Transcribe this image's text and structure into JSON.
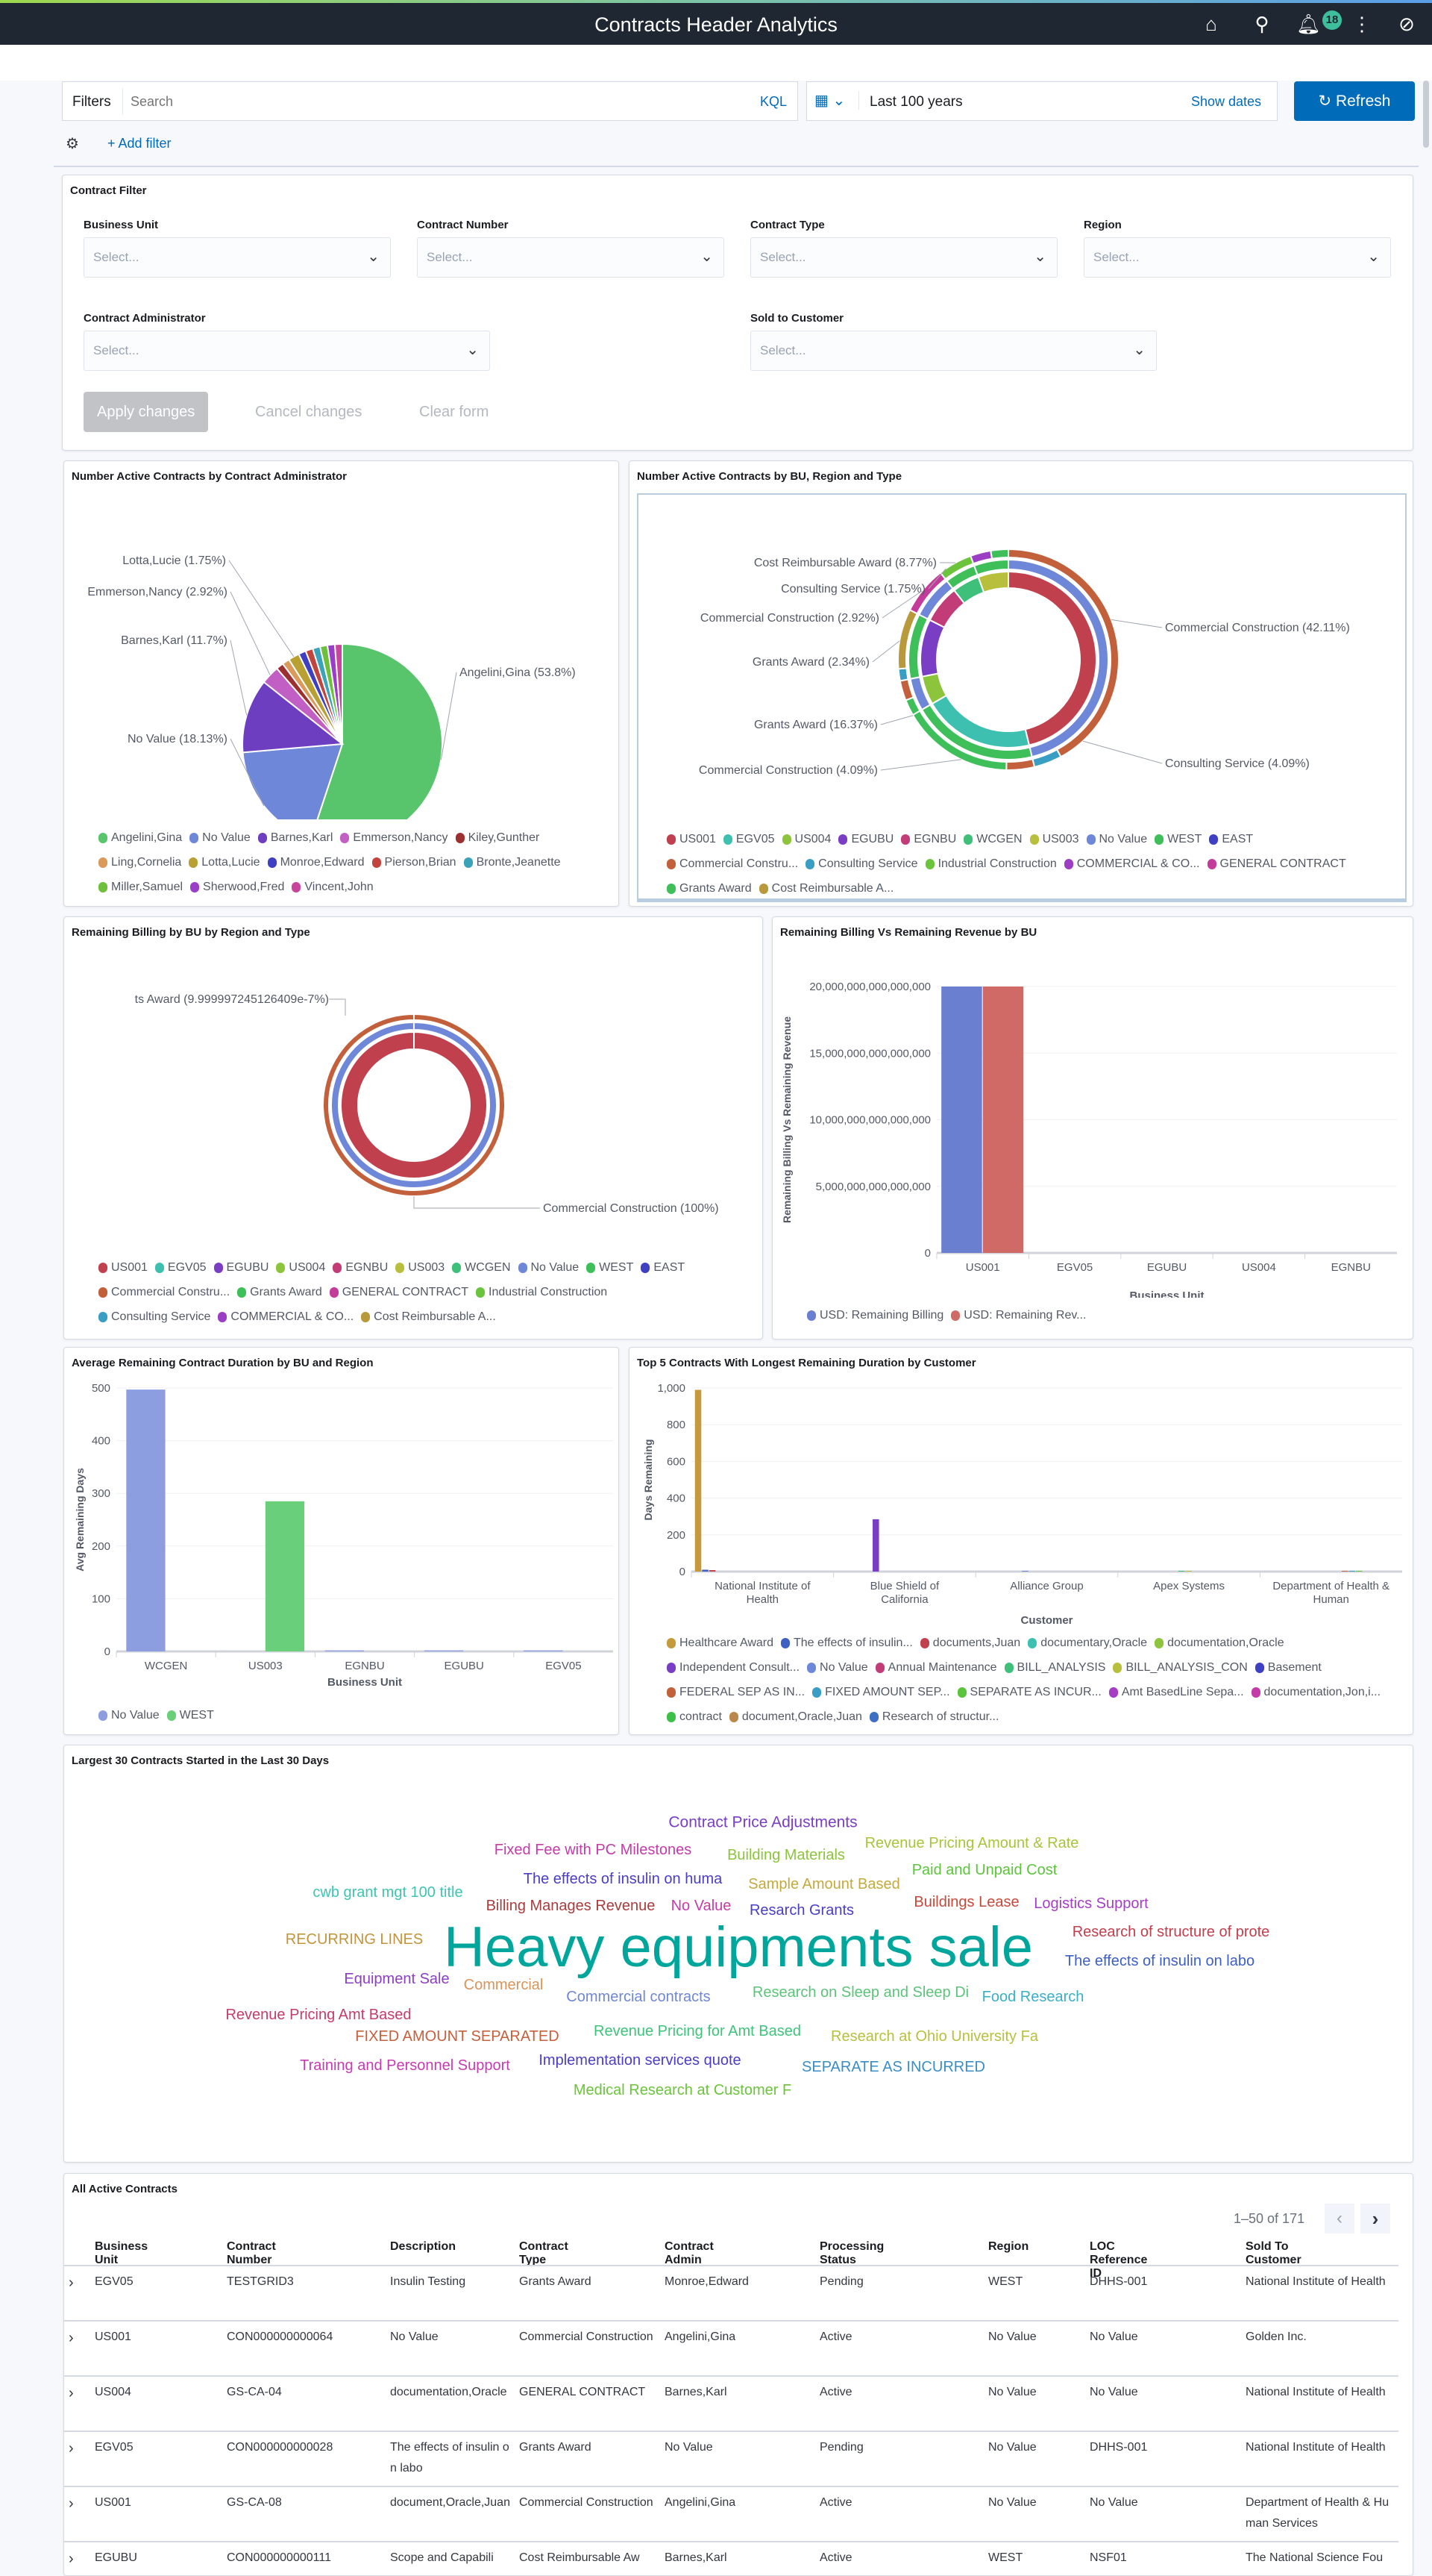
{
  "header": {
    "title": "Contracts Header Analytics",
    "notification_count": "18",
    "icons": [
      "home-icon",
      "search-icon",
      "bell-icon",
      "more-vertical-icon",
      "compass-icon"
    ]
  },
  "query_bar": {
    "filters_label": "Filters",
    "search_placeholder": "Search",
    "kql_label": "KQL",
    "date_range": "Last 100 years",
    "show_dates": "Show dates",
    "refresh_label": "Refresh",
    "add_filter": "+ Add filter"
  },
  "contract_filter": {
    "title": "Contract Filter",
    "fields": [
      {
        "label": "Business Unit",
        "placeholder": "Select..."
      },
      {
        "label": "Contract Number",
        "placeholder": "Select..."
      },
      {
        "label": "Contract Type",
        "placeholder": "Select..."
      },
      {
        "label": "Region",
        "placeholder": "Select..."
      },
      {
        "label": "Contract Administrator",
        "placeholder": "Select..."
      },
      {
        "label": "Sold to Customer",
        "placeholder": "Select..."
      }
    ],
    "apply": "Apply changes",
    "cancel": "Cancel changes",
    "clear": "Clear form"
  },
  "colors": {
    "accent": "#006bb8",
    "header_bg": "#1f2733",
    "wordcloud_main": "#00a69b"
  },
  "chart_data": [
    {
      "id": "admin-pie",
      "type": "pie",
      "title": "Number Active Contracts by Contract Administrator",
      "slices": [
        {
          "name": "Angelini,Gina",
          "value": 53.8,
          "color": "#58c46b",
          "label": "Angelini,Gina (53.8%)"
        },
        {
          "name": "No Value",
          "value": 18.13,
          "color": "#6f87d8",
          "label": "No Value (18.13%)"
        },
        {
          "name": "Barnes,Karl",
          "value": 11.7,
          "color": "#6d3fc0",
          "label": "Barnes,Karl (11.7%)"
        },
        {
          "name": "Emmerson,Nancy",
          "value": 2.92,
          "color": "#c25fc4",
          "label": "Emmerson,Nancy (2.92%)"
        },
        {
          "name": "Kiley,Gunther",
          "value": 1.17,
          "color": "#9c2f2f"
        },
        {
          "name": "Ling,Cornelia",
          "value": 1.17,
          "color": "#d99a5a"
        },
        {
          "name": "Lotta,Lucie",
          "value": 1.75,
          "color": "#b8a033",
          "label": "Lotta,Lucie (1.75%)"
        },
        {
          "name": "Monroe,Edward",
          "value": 1.17,
          "color": "#3e3fc2"
        },
        {
          "name": "Pierson,Brian",
          "value": 1.17,
          "color": "#c1443e"
        },
        {
          "name": "Bronte,Jeanette",
          "value": 1.17,
          "color": "#3aa3b8"
        },
        {
          "name": "Miller,Samuel",
          "value": 1.17,
          "color": "#6dbf3c"
        },
        {
          "name": "Sherwood,Fred",
          "value": 1.17,
          "color": "#9a3ec9"
        },
        {
          "name": "Vincent,John",
          "value": 1.17,
          "color": "#c9449c"
        }
      ],
      "legend": "bottom"
    },
    {
      "id": "bu-sunburst",
      "type": "pie",
      "title": "Number Active Contracts by BU, Region and Type",
      "legend_items": [
        [
          "US001",
          "#c1404e"
        ],
        [
          "EGV05",
          "#3ec0b0"
        ],
        [
          "US004",
          "#8cc43c"
        ],
        [
          "EGUBU",
          "#7a3ec4"
        ],
        [
          "EGNBU",
          "#c23c78"
        ],
        [
          "WCGEN",
          "#3ebf7a"
        ],
        [
          "US003",
          "#b8bf3c"
        ],
        [
          "No Value",
          "#6f87d8"
        ],
        [
          "WEST",
          "#3ebf5a"
        ],
        [
          "EAST",
          "#3e3fc2"
        ],
        [
          "Commercial Constru...",
          "#c2603c"
        ],
        [
          "Consulting Service",
          "#3a9ec4"
        ],
        [
          "Industrial Construction",
          "#6cc43c"
        ],
        [
          "COMMERCIAL & CO...",
          "#9c3ec4"
        ],
        [
          "GENERAL CONTRACT",
          "#c43c9a"
        ],
        [
          "Grants Award",
          "#3ebf5a"
        ],
        [
          "Cost Reimbursable A...",
          "#b89a3c"
        ]
      ],
      "rings": [
        [
          {
            "name": "US001",
            "value": 46.2
          },
          {
            "name": "EGV05",
            "value": 20.46
          },
          {
            "name": "US004",
            "value": 5.26
          },
          {
            "name": "EGUBU",
            "value": 10.52
          },
          {
            "name": "EGNBU",
            "value": 7
          },
          {
            "name": "WCGEN",
            "value": 5
          },
          {
            "name": "US003",
            "value": 5.56
          }
        ],
        [
          {
            "name": "No Value",
            "value": 46.2
          },
          {
            "name": "WEST",
            "value": 20.46
          },
          {
            "name": "No Value",
            "value": 5.26
          },
          {
            "name": "WEST",
            "value": 10.52
          },
          {
            "name": "No Value",
            "value": 7
          },
          {
            "name": "WEST",
            "value": 5
          },
          {
            "name": "WEST",
            "value": 5.56
          }
        ],
        [
          {
            "name": "Commercial Constru...",
            "value": 42.11
          },
          {
            "name": "Consulting Service",
            "value": 4.09
          },
          {
            "name": "Commercial Constru...",
            "value": 4.09
          },
          {
            "name": "Grants Award",
            "value": 16.37
          },
          {
            "name": "Grants Award",
            "value": 2.34
          },
          {
            "name": "Commercial Constru...",
            "value": 2.92
          },
          {
            "name": "Consulting Service",
            "value": 1.75
          },
          {
            "name": "Cost Reimbursable A...",
            "value": 8.77
          },
          {
            "name": "GENERAL CONTRACT",
            "value": 7
          },
          {
            "name": "Industrial Construction",
            "value": 5
          },
          {
            "name": "COMMERCIAL & CO...",
            "value": 3
          },
          {
            "name": "Grants Award",
            "value": 2.56
          }
        ]
      ],
      "labels": [
        "Cost Reimbursable Award (8.77%)",
        "Consulting Service (1.75%)",
        "Commercial Construction (2.92%)",
        "Grants Award (2.34%)",
        "Grants Award (16.37%)",
        "Commercial Construction (4.09%)",
        "Commercial Construction (42.11%)",
        "Consulting Service (4.09%)"
      ]
    },
    {
      "id": "billing-donut",
      "type": "pie",
      "title": "Remaining Billing by BU by Region and Type",
      "rings": [
        [
          {
            "name": "US001",
            "value": 100
          }
        ],
        [
          {
            "name": "No Value",
            "value": 100
          }
        ],
        [
          {
            "name": "Commercial Constru...",
            "value": 100
          }
        ]
      ],
      "labels": [
        "ts Award (9.999997245126409e-7%)",
        "Commercial Construction (100%)"
      ],
      "legend_items": [
        [
          "US001",
          "#c1404e"
        ],
        [
          "EGV05",
          "#3ec0b0"
        ],
        [
          "EGUBU",
          "#7a3ec4"
        ],
        [
          "US004",
          "#8cc43c"
        ],
        [
          "EGNBU",
          "#c23c78"
        ],
        [
          "US003",
          "#b8bf3c"
        ],
        [
          "WCGEN",
          "#3ebf7a"
        ],
        [
          "No Value",
          "#6f87d8"
        ],
        [
          "WEST",
          "#3ebf5a"
        ],
        [
          "EAST",
          "#3e3fc2"
        ],
        [
          "Commercial Constru...",
          "#c2603c"
        ],
        [
          "Grants Award",
          "#3ebf5a"
        ],
        [
          "GENERAL CONTRACT",
          "#c43c9a"
        ],
        [
          "Industrial Construction",
          "#6cc43c"
        ],
        [
          "Consulting Service",
          "#3a9ec4"
        ],
        [
          "COMMERCIAL & CO...",
          "#9c3ec4"
        ],
        [
          "Cost Reimbursable A...",
          "#b89a3c"
        ]
      ]
    },
    {
      "id": "billing-bar",
      "type": "bar",
      "title": "Remaining Billing Vs Remaining Revenue by BU",
      "xlabel": "Business Unit",
      "ylabel": "Remaining Billing Vs Remaining Revenue",
      "categories": [
        "US001",
        "EGV05",
        "EGUBU",
        "US004",
        "EGNBU"
      ],
      "ylim": [
        0,
        20000000000000000
      ],
      "yticks": [
        "0",
        "5,000,000,000,000,000",
        "10,000,000,000,000,000",
        "15,000,000,000,000,000",
        "20,000,000,000,000,000"
      ],
      "series": [
        {
          "name": "USD: Remaining Billing",
          "color": "#6a7fcf",
          "values": [
            20000000000000000,
            0,
            0,
            0,
            0
          ]
        },
        {
          "name": "USD: Remaining Rev...",
          "color": "#cf6a66",
          "values": [
            20000000000000000,
            0,
            0,
            0,
            0
          ]
        }
      ]
    },
    {
      "id": "duration-bar",
      "type": "bar",
      "title": "Average Remaining Contract Duration by BU and Region",
      "xlabel": "Business Unit",
      "ylabel": "Avg Remaining Days",
      "categories": [
        "WCGEN",
        "US003",
        "EGNBU",
        "EGUBU",
        "EGV05"
      ],
      "ylim": [
        0,
        500
      ],
      "yticks": [
        "0",
        "100",
        "200",
        "300",
        "400",
        "500"
      ],
      "series": [
        {
          "name": "No Value",
          "color": "#8c9ee0",
          "values": [
            497,
            0,
            2,
            2,
            2
          ]
        },
        {
          "name": "WEST",
          "color": "#6acf7a",
          "values": [
            0,
            285,
            0,
            0,
            0
          ]
        }
      ]
    },
    {
      "id": "top5-bar",
      "type": "bar",
      "title": "Top 5 Contracts With Longest Remaining Duration by Customer",
      "xlabel": "Customer",
      "ylabel": "Days Remaining",
      "categories": [
        "National Institute of Health",
        "Blue Shield of California",
        "Alliance Group",
        "Apex Systems",
        "Department of Health & Human"
      ],
      "ylim": [
        0,
        1000
      ],
      "yticks": [
        "0",
        "200",
        "400",
        "600",
        "800",
        "1,000"
      ],
      "series": [
        {
          "name": "Healthcare Award",
          "color": "#c49a3c",
          "values": [
            990,
            0,
            0,
            0,
            0
          ]
        },
        {
          "name": "The effects of insulin...",
          "color": "#3e5fc4",
          "values": [
            10,
            0,
            0,
            0,
            0
          ]
        },
        {
          "name": "documents,Juan",
          "color": "#c1404e",
          "values": [
            8,
            0,
            0,
            0,
            0
          ]
        },
        {
          "name": "documentary,Oracle",
          "color": "#3ec0b0",
          "values": [
            0,
            0,
            0,
            0,
            0
          ]
        },
        {
          "name": "documentation,Oracle",
          "color": "#8cc43c",
          "values": [
            0,
            0,
            0,
            0,
            0
          ]
        },
        {
          "name": "Independent Consult...",
          "color": "#7a3ec4",
          "values": [
            0,
            285,
            0,
            0,
            0
          ]
        },
        {
          "name": "No Value",
          "color": "#6f87d8",
          "values": [
            0,
            0,
            4,
            0,
            0
          ]
        },
        {
          "name": "Annual Maintenance",
          "color": "#c23c78",
          "values": [
            0,
            0,
            0,
            0,
            0
          ]
        },
        {
          "name": "BILL_ANALYSIS",
          "color": "#3ebf7a",
          "values": [
            0,
            0,
            0,
            4,
            0
          ]
        },
        {
          "name": "BILL_ANALYSIS_CON",
          "color": "#b8bf3c",
          "values": [
            0,
            0,
            0,
            4,
            0
          ]
        },
        {
          "name": "Basement",
          "color": "#3e3fc2",
          "values": [
            0,
            0,
            0,
            0,
            0
          ]
        },
        {
          "name": "FEDERAL SEP AS IN...",
          "color": "#c2603c",
          "values": [
            0,
            0,
            0,
            0,
            4
          ]
        },
        {
          "name": "FIXED AMOUNT SEP...",
          "color": "#3a9ec4",
          "values": [
            0,
            0,
            0,
            0,
            4
          ]
        },
        {
          "name": "SEPARATE AS INCUR...",
          "color": "#5cc43c",
          "values": [
            0,
            0,
            0,
            0,
            4
          ]
        },
        {
          "name": "Amt BasedLine Sepa...",
          "color": "#a43ec4",
          "values": [
            0,
            0,
            0,
            0,
            0
          ]
        },
        {
          "name": "documentation,Jon,i...",
          "color": "#c43ca8",
          "values": [
            0,
            0,
            0,
            0,
            0
          ]
        },
        {
          "name": "contract",
          "color": "#3ebf4a",
          "values": [
            0,
            0,
            0,
            0,
            0
          ]
        },
        {
          "name": "document,Oracle,Juan",
          "color": "#b8894a",
          "values": [
            0,
            0,
            0,
            0,
            0
          ]
        },
        {
          "name": "Research of structur...",
          "color": "#3e6fc4",
          "values": [
            0,
            0,
            0,
            0,
            0
          ]
        }
      ]
    }
  ],
  "wordcloud": {
    "title": "Largest 30 Contracts Started in the Last 30 Days",
    "words": [
      {
        "text": "Contract Price Adjustments",
        "color": "#7a3ec4"
      },
      {
        "text": "Fixed Fee with PC Milestones",
        "color": "#c43ca8"
      },
      {
        "text": "Building Materials",
        "color": "#8cc43c"
      },
      {
        "text": "Revenue Pricing Amount & Rate",
        "color": "#a8c43c"
      },
      {
        "text": "Paid and Unpaid Cost",
        "color": "#5cc43c"
      },
      {
        "text": "The effects of insulin on huma",
        "color": "#4a3ec4"
      },
      {
        "text": "Sample Amount Based",
        "color": "#c4aa3c"
      },
      {
        "text": "cwb grant mgt 100 title",
        "color": "#3ec4b0"
      },
      {
        "text": "Billing Manages Revenue",
        "color": "#a83c3c"
      },
      {
        "text": "No Value",
        "color": "#c43ca8"
      },
      {
        "text": "Resarch Grants",
        "color": "#4a3ec4"
      },
      {
        "text": "Buildings Lease",
        "color": "#c44a3c"
      },
      {
        "text": "Logistics Support",
        "color": "#a43ec4"
      },
      {
        "text": "Research of structure of prote",
        "color": "#c1404e"
      },
      {
        "text": "RECURRING LINES",
        "color": "#c4943c"
      },
      {
        "text": "Heavy equipments sale",
        "color": "#00a69b"
      },
      {
        "text": "The effects of insulin on labo",
        "color": "#3e5fc4"
      },
      {
        "text": "Equipment Sale",
        "color": "#8c3ec4"
      },
      {
        "text": "Commercial",
        "color": "#d9945a"
      },
      {
        "text": "Commercial contracts",
        "color": "#6f87d8"
      },
      {
        "text": "Research on Sleep and Sleep Di",
        "color": "#5cc47a"
      },
      {
        "text": "Food Research",
        "color": "#3ab0c4"
      },
      {
        "text": "Revenue Pricing Amt Based",
        "color": "#c43c6a"
      },
      {
        "text": "FIXED AMOUNT SEPARATED",
        "color": "#c4603c"
      },
      {
        "text": "Revenue Pricing for Amt Based",
        "color": "#3ec47a"
      },
      {
        "text": "Research at Ohio University Fa",
        "color": "#b8bf3c"
      },
      {
        "text": "Training and Personnel Support",
        "color": "#c43cb0"
      },
      {
        "text": "Implementation services quote",
        "color": "#4a3ec4"
      },
      {
        "text": "SEPARATE AS INCURRED",
        "color": "#3a8ec4"
      },
      {
        "text": "Medical Research at Customer F",
        "color": "#6cc43c"
      }
    ]
  },
  "table": {
    "title": "All Active Contracts",
    "pagination": "1–50 of 171",
    "columns": [
      "Business Unit",
      "Contract Number",
      "Description",
      "Contract Type",
      "Contract Admin",
      "Processing Status",
      "Region",
      "LOC Reference ID",
      "Sold To Customer"
    ],
    "rows": [
      [
        "EGV05",
        "TESTGRID3",
        "Insulin Testing",
        "Grants Award",
        "Monroe,Edward",
        "Pending",
        "WEST",
        "DHHS-001",
        "National Institute of Health"
      ],
      [
        "US001",
        "CON000000000064",
        "No Value",
        "Commercial Construction",
        "Angelini,Gina",
        "Active",
        "No Value",
        "No Value",
        "Golden Inc."
      ],
      [
        "US004",
        "GS-CA-04",
        "documentation,Oracle",
        "GENERAL CONTRACT",
        "Barnes,Karl",
        "Active",
        "No Value",
        "No Value",
        "National Institute of Health"
      ],
      [
        "EGV05",
        "CON000000000028",
        "The effects of insulin on labo",
        "Grants Award",
        "No Value",
        "Pending",
        "No Value",
        "DHHS-001",
        "National Institute of Health"
      ],
      [
        "US001",
        "GS-CA-08",
        "document,Oracle,Juan",
        "Commercial Construction",
        "Angelini,Gina",
        "Active",
        "No Value",
        "No Value",
        "Department of Health & Human Services"
      ],
      [
        "EGUBU",
        "CON000000000111",
        "Scope and Capabili",
        "Cost Reimbursable Aw",
        "Barnes,Karl",
        "Active",
        "WEST",
        "NSF01",
        "The National Science Fou"
      ]
    ]
  }
}
